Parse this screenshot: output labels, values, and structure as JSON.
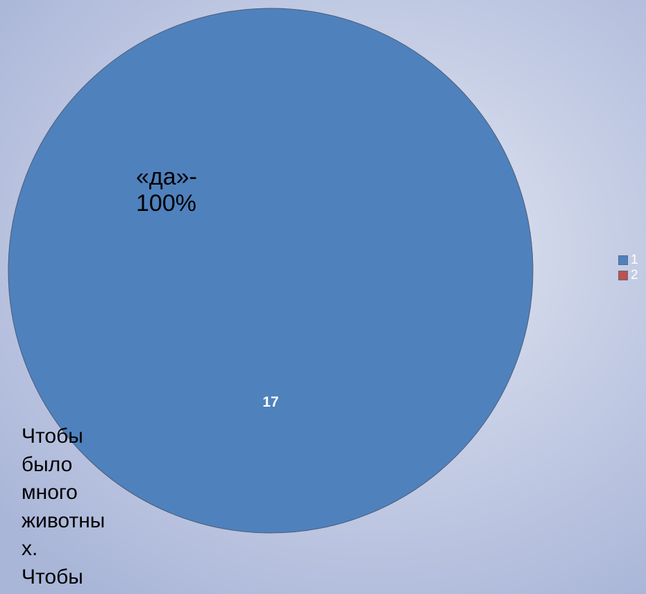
{
  "chart_data": {
    "type": "pie",
    "categories": [
      "1",
      "2"
    ],
    "values": [
      17,
      0
    ],
    "colors": [
      "#4f81bd",
      "#c0504d"
    ],
    "data_labels": [
      "17",
      ""
    ],
    "annotation": "«да»-\n100%",
    "legend_position": "right"
  },
  "side_text": "Чтобы\nбыло\nмного\nживотны\nх.\nЧтобы"
}
